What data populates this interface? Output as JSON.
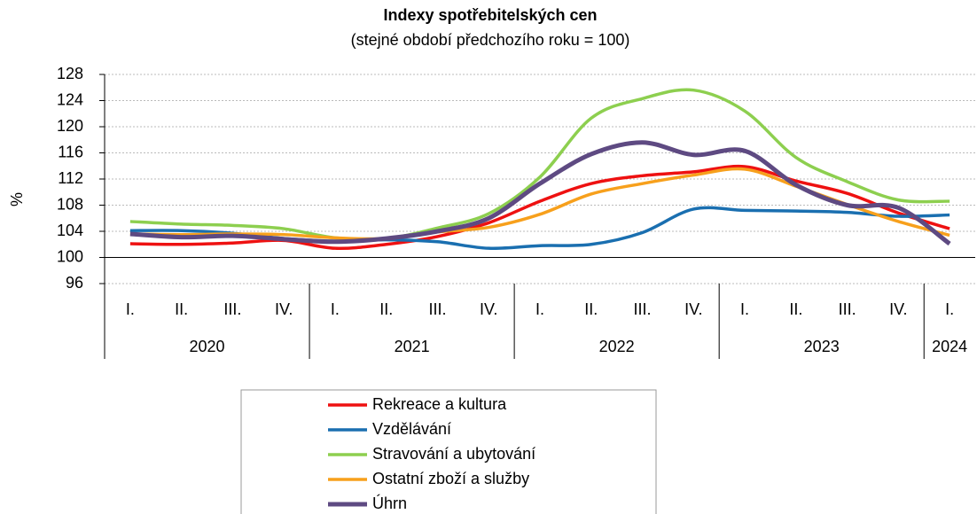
{
  "chart_data": {
    "type": "line",
    "title": "Indexy spotřebitelských cen",
    "subtitle": "(stejné období předchozího roku = 100)",
    "y_label": "%",
    "categories": [
      "I.",
      "II.",
      "III.",
      "IV.",
      "I.",
      "II.",
      "III.",
      "IV.",
      "I.",
      "II.",
      "III.",
      "IV.",
      "I.",
      "II.",
      "III.",
      "IV.",
      "I."
    ],
    "x_groups": [
      {
        "name": "2020",
        "size": 4
      },
      {
        "name": "2021",
        "size": 4
      },
      {
        "name": "2022",
        "size": 4
      },
      {
        "name": "2023",
        "size": 4
      },
      {
        "name": "2024",
        "size": 1
      }
    ],
    "series": [
      {
        "name": "Rekreace a kultura",
        "color": "#ee1111",
        "values": [
          102.1,
          102.0,
          102.2,
          102.6,
          101.4,
          102.0,
          103.2,
          105.3,
          108.6,
          111.3,
          112.5,
          113.1,
          113.9,
          111.7,
          109.8,
          106.8,
          104.4
        ]
      },
      {
        "name": "Vzdělávání",
        "color": "#1a6fb0",
        "values": [
          104.1,
          104.1,
          103.7,
          102.9,
          102.5,
          102.7,
          102.4,
          101.4,
          101.8,
          102.0,
          103.8,
          107.4,
          107.2,
          107.1,
          106.9,
          106.3,
          106.5
        ]
      },
      {
        "name": "Stravování a ubytování",
        "color": "#8dcf4f",
        "values": [
          105.5,
          105.1,
          104.9,
          104.4,
          103.0,
          102.9,
          104.5,
          106.7,
          112.3,
          121.3,
          124.3,
          125.6,
          122.4,
          115.3,
          111.6,
          108.8,
          108.6
        ]
      },
      {
        "name": "Ostatní zboží a služby",
        "color": "#f7a01c",
        "values": [
          103.6,
          103.5,
          103.6,
          103.5,
          103.0,
          102.9,
          103.9,
          104.6,
          106.6,
          109.7,
          111.3,
          112.6,
          113.5,
          110.9,
          108.1,
          105.5,
          103.4
        ]
      },
      {
        "name": "Úhrn",
        "color": "#5e4a82",
        "values": [
          103.6,
          103.1,
          103.3,
          102.8,
          102.4,
          102.9,
          104.0,
          106.0,
          111.3,
          115.8,
          117.6,
          115.7,
          116.3,
          111.1,
          108.0,
          107.6,
          102.1
        ]
      }
    ],
    "ylim": [
      96,
      128
    ],
    "yticks": [
      96,
      100,
      104,
      108,
      112,
      116,
      120,
      124,
      128
    ],
    "baseline": 100,
    "grid": true
  }
}
